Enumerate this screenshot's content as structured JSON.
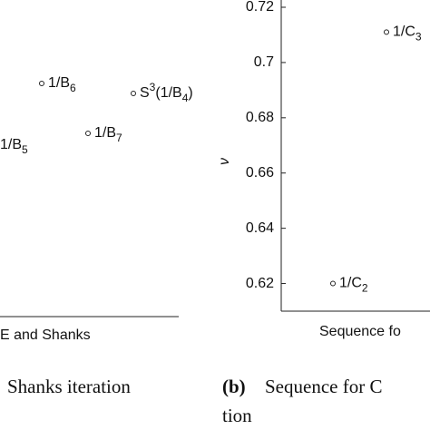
{
  "left_panel": {
    "x_label": "E and Shanks",
    "caption": "Shanks iteration",
    "points": [
      {
        "label": [
          {
            "text": "1/B"
          },
          {
            "text": "6",
            "pos": "sub"
          }
        ]
      },
      {
        "label": [
          {
            "text": "S"
          },
          {
            "text": "3",
            "pos": "sup"
          },
          {
            "text": "(1/B"
          },
          {
            "text": "4",
            "pos": "sub"
          },
          {
            "text": ")"
          }
        ]
      },
      {
        "label": [
          {
            "text": "1/B"
          },
          {
            "text": "7",
            "pos": "sub"
          }
        ]
      },
      {
        "label": [
          {
            "text": "1/B"
          },
          {
            "text": "5",
            "pos": "sub"
          }
        ]
      }
    ]
  },
  "chart_data": {
    "type": "scatter",
    "y_label": "ν",
    "x_label": "Sequence fo",
    "caption_tag": "(b)",
    "caption": [
      "Sequence for C",
      "tion"
    ],
    "ylim": [
      0.61,
      0.72
    ],
    "yticks": [
      0.62,
      0.64,
      0.66,
      0.68,
      0.7,
      0.72
    ],
    "values": [
      0.62,
      0.711
    ],
    "point_labels": [
      [
        {
          "text": "1/C"
        },
        {
          "text": "2",
          "pos": "sub"
        }
      ],
      [
        {
          "text": "1/C"
        },
        {
          "text": "3",
          "pos": "sub"
        }
      ]
    ]
  }
}
